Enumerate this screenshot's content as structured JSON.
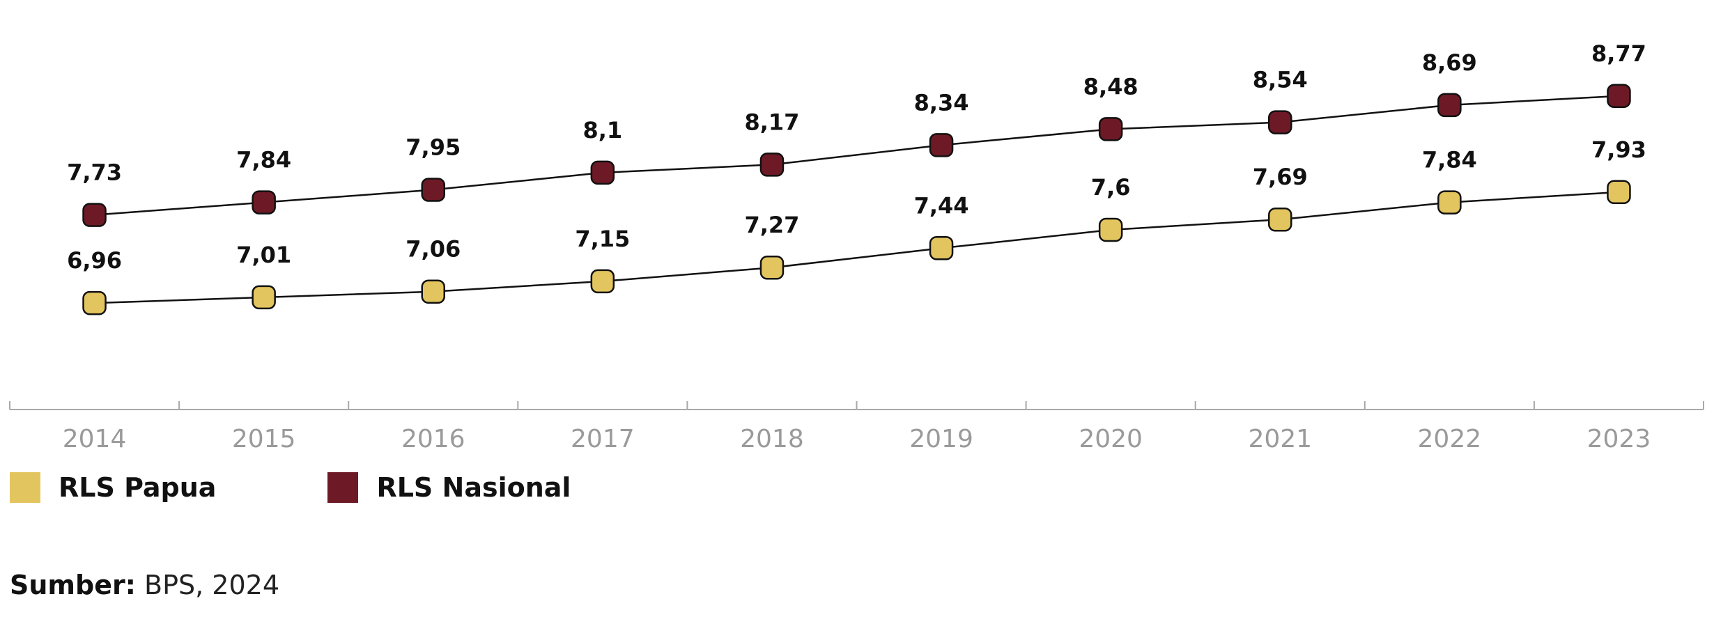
{
  "chart_data": {
    "type": "line",
    "categories": [
      "2014",
      "2015",
      "2016",
      "2017",
      "2018",
      "2019",
      "2020",
      "2021",
      "2022",
      "2023"
    ],
    "series": [
      {
        "name": "RLS Papua",
        "color": "#e3c55f",
        "values": [
          6.96,
          7.01,
          7.06,
          7.15,
          7.27,
          7.44,
          7.6,
          7.69,
          7.84,
          7.93
        ],
        "labels": [
          "6,96",
          "7,01",
          "7,06",
          "7,15",
          "7,27",
          "7,44",
          "7,6",
          "7,69",
          "7,84",
          "7,93"
        ]
      },
      {
        "name": "RLS Nasional",
        "color": "#6e1a26",
        "values": [
          7.73,
          7.84,
          7.95,
          8.1,
          8.17,
          8.34,
          8.48,
          8.54,
          8.69,
          8.77
        ],
        "labels": [
          "7,73",
          "7,84",
          "7,95",
          "8,1",
          "8,17",
          "8,34",
          "8,48",
          "8,54",
          "8,69",
          "8,77"
        ]
      }
    ],
    "ylim": [
      6.2,
      9.0
    ],
    "grid": false,
    "legend_position": "bottom-left",
    "xlabel": "",
    "ylabel": ""
  },
  "source": {
    "label": "Sumber:",
    "text": "BPS, 2024"
  }
}
